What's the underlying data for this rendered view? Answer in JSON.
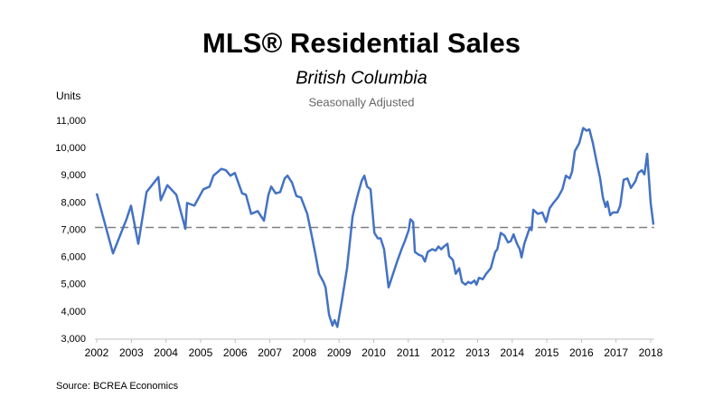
{
  "chart_data": {
    "type": "line",
    "title": "MLS® Residential Sales",
    "subtitle": "British Columbia",
    "annotation": "Seasonally Adjusted",
    "ylabel": "Units",
    "source": "Source: BCREA Economics",
    "x": [
      2002.0,
      2002.47,
      2002.86,
      2002.99,
      2003.2,
      2003.44,
      2003.78,
      2003.85,
      2004.04,
      2004.3,
      2004.56,
      2004.61,
      2004.82,
      2005.08,
      2005.26,
      2005.37,
      2005.6,
      2005.73,
      2005.86,
      2005.99,
      2006.2,
      2006.31,
      2006.46,
      2006.65,
      2006.83,
      2006.96,
      2007.04,
      2007.17,
      2007.3,
      2007.43,
      2007.51,
      2007.64,
      2007.77,
      2007.9,
      2008.08,
      2008.21,
      2008.32,
      2008.42,
      2008.55,
      2008.61,
      2008.71,
      2008.81,
      2008.87,
      2008.95,
      2009.08,
      2009.23,
      2009.39,
      2009.52,
      2009.65,
      2009.73,
      2009.81,
      2009.91,
      2010.02,
      2010.12,
      2010.2,
      2010.3,
      2010.43,
      2010.56,
      2010.69,
      2010.82,
      2010.9,
      2011.01,
      2011.06,
      2011.14,
      2011.19,
      2011.3,
      2011.4,
      2011.48,
      2011.56,
      2011.69,
      2011.79,
      2011.87,
      2011.95,
      2012.03,
      2012.13,
      2012.18,
      2012.29,
      2012.37,
      2012.47,
      2012.55,
      2012.65,
      2012.73,
      2012.81,
      2012.91,
      2012.97,
      2013.04,
      2013.15,
      2013.25,
      2013.38,
      2013.51,
      2013.57,
      2013.67,
      2013.78,
      2013.88,
      2013.96,
      2014.04,
      2014.14,
      2014.22,
      2014.27,
      2014.35,
      2014.51,
      2014.56,
      2014.61,
      2014.74,
      2014.87,
      2014.98,
      2015.08,
      2015.19,
      2015.32,
      2015.45,
      2015.55,
      2015.66,
      2015.73,
      2015.81,
      2015.94,
      2016.05,
      2016.15,
      2016.23,
      2016.33,
      2016.44,
      2016.54,
      2016.62,
      2016.7,
      2016.75,
      2016.83,
      2016.91,
      2017.04,
      2017.12,
      2017.22,
      2017.33,
      2017.43,
      2017.56,
      2017.64,
      2017.74,
      2017.82,
      2017.9,
      2018.0,
      2018.08
    ],
    "series": [
      {
        "name": "MLS® Residential Sales",
        "color": "#4472c4",
        "values": [
          8350,
          6150,
          7400,
          7900,
          6500,
          8400,
          8950,
          8100,
          8650,
          8300,
          7050,
          8000,
          7900,
          8500,
          8600,
          9000,
          9250,
          9200,
          9000,
          9100,
          8350,
          8300,
          7600,
          7700,
          7350,
          8300,
          8600,
          8350,
          8400,
          8900,
          9000,
          8750,
          8250,
          8200,
          7600,
          6800,
          6100,
          5400,
          5100,
          4900,
          3900,
          3500,
          3700,
          3450,
          4400,
          5600,
          7500,
          8200,
          8800,
          9000,
          8600,
          8500,
          6900,
          6700,
          6700,
          6300,
          4900,
          5400,
          5900,
          6350,
          6600,
          7000,
          7400,
          7300,
          6200,
          6100,
          6050,
          5850,
          6200,
          6300,
          6250,
          6400,
          6300,
          6400,
          6500,
          6050,
          5900,
          5400,
          5600,
          5100,
          5000,
          5100,
          5050,
          5150,
          5000,
          5250,
          5200,
          5400,
          5600,
          6200,
          6300,
          6900,
          6800,
          6550,
          6600,
          6850,
          6500,
          6300,
          6000,
          6500,
          7100,
          7000,
          7750,
          7600,
          7650,
          7300,
          7800,
          8000,
          8200,
          8500,
          9000,
          8900,
          9150,
          9900,
          10200,
          10750,
          10650,
          10700,
          10200,
          9500,
          8900,
          8200,
          7850,
          8050,
          7550,
          7650,
          7650,
          7900,
          8850,
          8900,
          8550,
          8800,
          9100,
          9200,
          9050,
          9800,
          8000,
          7200
        ]
      }
    ],
    "reference_line": 7100,
    "reference_color": "#808080",
    "xlim": [
      2001.95,
      2018.1
    ],
    "xticks": [
      2002,
      2003,
      2004,
      2005,
      2006,
      2007,
      2008,
      2009,
      2010,
      2011,
      2012,
      2013,
      2014,
      2015,
      2016,
      2017,
      2018
    ],
    "ylim": [
      3000,
      11000
    ],
    "yticks": [
      {
        "value": 3000,
        "label": "3,000"
      },
      {
        "value": 4000,
        "label": "4,000"
      },
      {
        "value": 5000,
        "label": "5,000"
      },
      {
        "value": 6000,
        "label": "6,000"
      },
      {
        "value": 7000,
        "label": "7,000"
      },
      {
        "value": 8000,
        "label": "8,000"
      },
      {
        "value": 9000,
        "label": "9,000"
      },
      {
        "value": 10000,
        "label": "10,000"
      },
      {
        "value": 11000,
        "label": "11,000"
      }
    ],
    "grid": false
  }
}
